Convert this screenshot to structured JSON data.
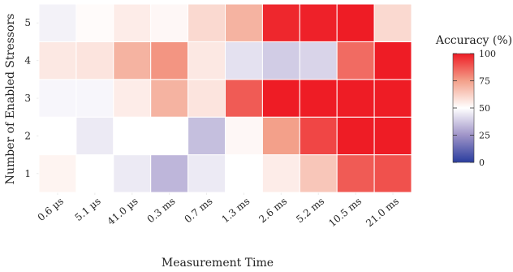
{
  "chart_data": {
    "type": "heatmap",
    "xlabel": "Measurement Time",
    "ylabel": "Number of Enabled Stressors",
    "x_categories": [
      "0.6 µs",
      "5.1 µs",
      "41.0 µs",
      "0.3 ms",
      "0.7 ms",
      "1.3 ms",
      "2.6 ms",
      "5.2 ms",
      "10.5 ms",
      "21.0 ms"
    ],
    "y_categories": [
      "1",
      "2",
      "3",
      "4",
      "5"
    ],
    "values": [
      [
        53,
        50,
        45,
        33,
        45,
        50,
        55,
        65,
        88,
        90
      ],
      [
        50,
        45,
        50,
        50,
        35,
        52,
        75,
        92,
        100,
        100
      ],
      [
        48,
        48,
        55,
        70,
        57,
        88,
        100,
        100,
        100,
        100
      ],
      [
        56,
        57,
        70,
        77,
        56,
        43,
        38,
        40,
        85,
        100
      ],
      [
        47,
        51,
        55,
        52,
        60,
        70,
        98,
        99,
        100,
        60
      ]
    ],
    "colorbar": {
      "title": "Accuracy (%)",
      "range": [
        0,
        100
      ],
      "ticks": [
        "0",
        "25",
        "50",
        "75",
        "100"
      ],
      "colors": {
        "low": "#2a3d9e",
        "mid": "#ffffff",
        "high": "#ee1c25"
      }
    },
    "grid": true
  }
}
